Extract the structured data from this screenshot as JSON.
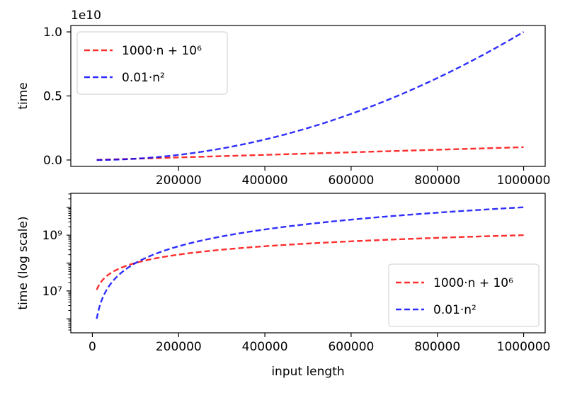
{
  "chart_data": [
    {
      "type": "line",
      "title": "",
      "xlabel": "",
      "ylabel": "time",
      "offset_text": "1e10",
      "xlim": [
        -50000,
        1050000
      ],
      "ylim": [
        -500000000.0,
        10500000000.0
      ],
      "yscale": "linear",
      "x_ticks": [
        200000,
        400000,
        600000,
        800000,
        1000000
      ],
      "x_tick_labels": [
        "200000",
        "400000",
        "600000",
        "800000",
        "1000000"
      ],
      "y_ticks": [
        0,
        5000000000,
        10000000000
      ],
      "y_tick_labels": [
        "0.0",
        "0.5",
        "1.0"
      ],
      "grid": false,
      "legend_position": "upper left",
      "series": [
        {
          "name": "1000·n + 10⁶",
          "color": "#ff0000",
          "style": "dashed",
          "formula": "linear",
          "a": 1000,
          "b": 1000000
        },
        {
          "name": "0.01·n²",
          "color": "#0000ff",
          "style": "dashed",
          "formula": "quadratic",
          "c": 0.01
        }
      ],
      "x": [
        10000,
        100000,
        200000,
        300000,
        400000,
        500000,
        600000,
        700000,
        800000,
        900000,
        1000000
      ]
    },
    {
      "type": "line",
      "title": "",
      "xlabel": "input length",
      "ylabel": "time (log scale)",
      "xlim": [
        -50000,
        1050000
      ],
      "ylim_log10": [
        5.5,
        10.5
      ],
      "yscale": "log",
      "x_ticks": [
        0,
        200000,
        400000,
        600000,
        800000,
        1000000
      ],
      "x_tick_labels": [
        "0",
        "200000",
        "400000",
        "600000",
        "800000",
        "1000000"
      ],
      "y_ticks_log10": [
        7,
        9
      ],
      "y_tick_labels": [
        "10⁷",
        "10⁹"
      ],
      "grid": false,
      "legend_position": "lower right",
      "series": [
        {
          "name": "1000·n + 10⁶",
          "color": "#ff0000",
          "style": "dashed",
          "formula": "linear",
          "a": 1000,
          "b": 1000000
        },
        {
          "name": "0.01·n²",
          "color": "#0000ff",
          "style": "dashed",
          "formula": "quadratic",
          "c": 0.01
        }
      ],
      "x": [
        10000,
        100000,
        200000,
        300000,
        400000,
        500000,
        600000,
        700000,
        800000,
        900000,
        1000000
      ]
    }
  ]
}
